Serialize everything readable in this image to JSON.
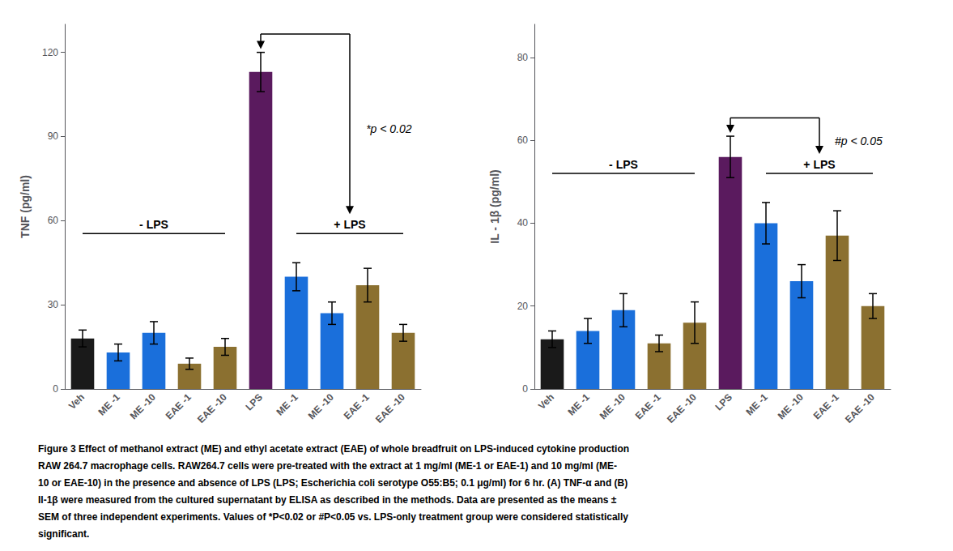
{
  "chart_data": [
    {
      "type": "bar",
      "ylabel": "TNF (pg/ml)",
      "categories": [
        "Veh",
        "ME -1",
        "ME -10",
        "EAE -1",
        "EAE -10",
        "LPS",
        "ME -1",
        "ME -10",
        "EAE -1",
        "EAE -10"
      ],
      "values": [
        18,
        13,
        20,
        9,
        15,
        113,
        40,
        27,
        37,
        20
      ],
      "errors": [
        3,
        3,
        4,
        2,
        3,
        7,
        5,
        4,
        6,
        3
      ],
      "colors": [
        "#1a1a1a",
        "#1a6fdb",
        "#1a6fdb",
        "#8b7030",
        "#8b7030",
        "#5a1a5e",
        "#1a6fdb",
        "#1a6fdb",
        "#8b7030",
        "#8b7030"
      ],
      "ylim": [
        0,
        130
      ],
      "yticks": [
        0,
        30,
        60,
        90,
        120
      ],
      "grid": false,
      "annotations": [
        "- LPS",
        "+ LPS",
        "*p < 0.02"
      ]
    },
    {
      "type": "bar",
      "ylabel": "IL - 1β (pg/ml)",
      "categories": [
        "Veh",
        "ME -1",
        "ME -10",
        "EAE -1",
        "EAE -10",
        "LPS",
        "ME -1",
        "ME -10",
        "EAE -1",
        "EAE -10"
      ],
      "values": [
        12,
        14,
        19,
        11,
        16,
        56,
        40,
        26,
        37,
        20
      ],
      "errors": [
        2,
        3,
        4,
        2,
        5,
        5,
        5,
        4,
        6,
        3
      ],
      "colors": [
        "#1a1a1a",
        "#1a6fdb",
        "#1a6fdb",
        "#8b7030",
        "#8b7030",
        "#5a1a5e",
        "#1a6fdb",
        "#1a6fdb",
        "#8b7030",
        "#8b7030"
      ],
      "ylim": [
        0,
        88
      ],
      "yticks": [
        0,
        20,
        40,
        60,
        80
      ],
      "grid": false,
      "annotations": [
        "- LPS",
        "+ LPS",
        "#p < 0.05"
      ]
    }
  ],
  "caption": [
    "Figure 3 Effect of methanol extract (ME) and ethyl acetate extract (EAE) of whole breadfruit on LPS-induced cytokine production",
    "RAW 264.7 macrophage cells. RAW264.7 cells were pre-treated with the extract at 1 mg/ml (ME-1 or EAE-1) and 10 mg/ml (ME-",
    "10 or EAE-10) in the presence and absence of LPS (LPS; Escherichia coli serotype O55:B5; 0.1 μg/ml) for 6 hr. (A) TNF-α and (B)",
    "Il-1β were measured from the cultured supernatant by ELISA as described in the methods. Data are presented as the means ±",
    "SEM of three independent experiments. Values of *P<0.02 or #P<0.05 vs. LPS-only treatment group were considered statistically",
    "significant."
  ]
}
